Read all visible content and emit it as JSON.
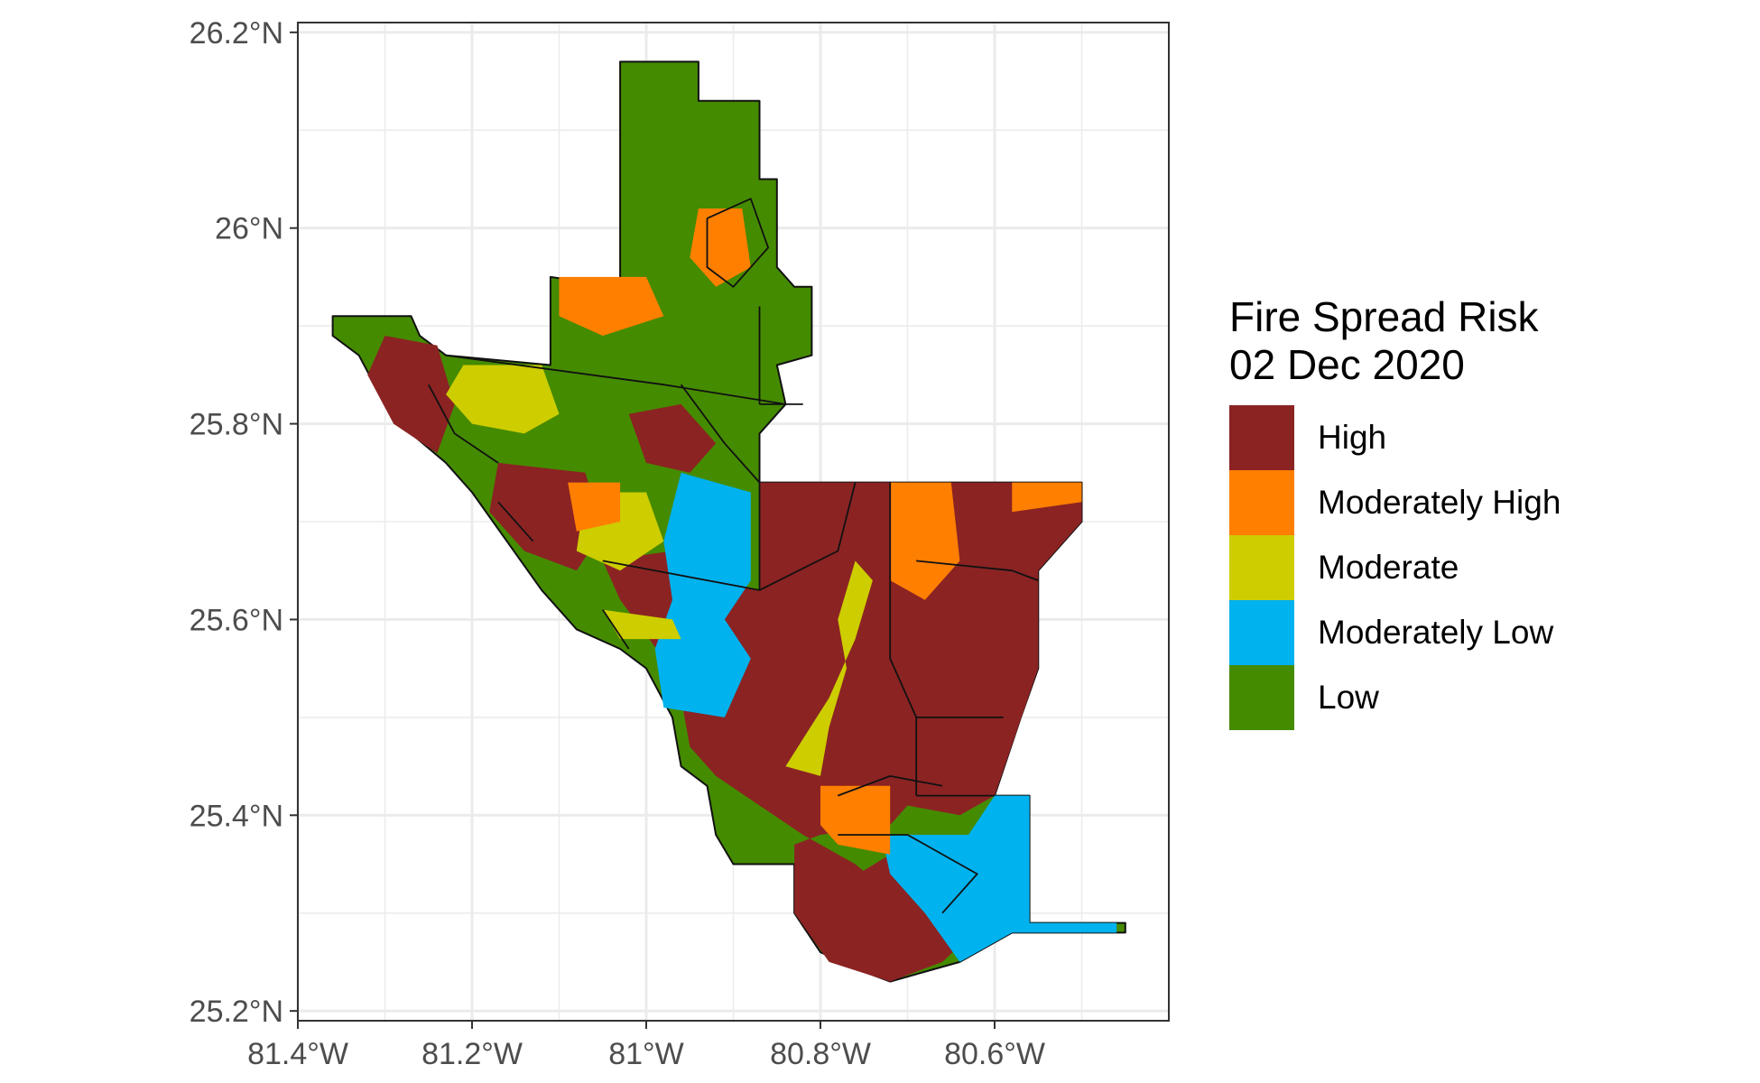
{
  "chart_data": {
    "type": "map",
    "title": "",
    "xlabel": "",
    "ylabel": "",
    "xlim": [
      -81.4,
      -80.4
    ],
    "ylim": [
      25.19,
      26.21
    ],
    "grid": true,
    "x_ticks": [
      {
        "value": -81.4,
        "label": "81.4°W"
      },
      {
        "value": -81.2,
        "label": "81.2°W"
      },
      {
        "value": -81.0,
        "label": "81°W"
      },
      {
        "value": -80.8,
        "label": "80.8°W"
      },
      {
        "value": -80.6,
        "label": "80.6°W"
      }
    ],
    "y_ticks": [
      {
        "value": 25.2,
        "label": "25.2°N"
      },
      {
        "value": 25.4,
        "label": "25.4°N"
      },
      {
        "value": 25.6,
        "label": "25.6°N"
      },
      {
        "value": 25.8,
        "label": "25.8°N"
      },
      {
        "value": 26.0,
        "label": "26°N"
      },
      {
        "value": 26.2,
        "label": "26.2°N"
      }
    ],
    "legend": {
      "title_line1": "Fire Spread Risk",
      "title_line2": "02 Dec 2020",
      "placement": "right",
      "classes": [
        {
          "label": "High",
          "color": "#8B2323"
        },
        {
          "label": "Moderately High",
          "color": "#FF7F00"
        },
        {
          "label": "Moderate",
          "color": "#CDCD00"
        },
        {
          "label": "Moderately Low",
          "color": "#00B2EE"
        },
        {
          "label": "Low",
          "color": "#458B00"
        }
      ]
    },
    "regions": [
      {
        "name": "outer-boundary",
        "class": "Low",
        "coords": [
          [
            -81.36,
            25.91
          ],
          [
            -81.27,
            25.91
          ],
          [
            -81.26,
            25.89
          ],
          [
            -81.23,
            25.87
          ],
          [
            -81.11,
            25.86
          ],
          [
            -81.11,
            25.95
          ],
          [
            -81.03,
            25.94
          ],
          [
            -81.03,
            26.17
          ],
          [
            -80.94,
            26.17
          ],
          [
            -80.94,
            26.13
          ],
          [
            -80.87,
            26.13
          ],
          [
            -80.87,
            26.05
          ],
          [
            -80.85,
            26.05
          ],
          [
            -80.85,
            25.96
          ],
          [
            -80.83,
            25.94
          ],
          [
            -80.81,
            25.94
          ],
          [
            -80.81,
            25.87
          ],
          [
            -80.85,
            25.86
          ],
          [
            -80.84,
            25.82
          ],
          [
            -80.87,
            25.79
          ],
          [
            -80.87,
            25.74
          ],
          [
            -80.5,
            25.74
          ],
          [
            -80.5,
            25.7
          ],
          [
            -80.55,
            25.65
          ],
          [
            -80.55,
            25.55
          ],
          [
            -80.57,
            25.5
          ],
          [
            -80.6,
            25.42
          ],
          [
            -80.56,
            25.42
          ],
          [
            -80.56,
            25.29
          ],
          [
            -80.45,
            25.29
          ],
          [
            -80.45,
            25.28
          ],
          [
            -80.58,
            25.28
          ],
          [
            -80.64,
            25.25
          ],
          [
            -80.72,
            25.23
          ],
          [
            -80.75,
            25.24
          ],
          [
            -80.8,
            25.26
          ],
          [
            -80.83,
            25.3
          ],
          [
            -80.83,
            25.35
          ],
          [
            -80.9,
            25.35
          ],
          [
            -80.92,
            25.38
          ],
          [
            -80.93,
            25.43
          ],
          [
            -80.96,
            25.45
          ],
          [
            -80.97,
            25.5
          ],
          [
            -81.0,
            25.55
          ],
          [
            -81.03,
            25.57
          ],
          [
            -81.08,
            25.59
          ],
          [
            -81.12,
            25.63
          ],
          [
            -81.16,
            25.68
          ],
          [
            -81.2,
            25.73
          ],
          [
            -81.23,
            25.76
          ],
          [
            -81.27,
            25.79
          ],
          [
            -81.3,
            25.82
          ],
          [
            -81.33,
            25.87
          ],
          [
            -81.36,
            25.89
          ]
        ]
      },
      {
        "name": "high-central",
        "class": "High",
        "coords": [
          [
            -80.87,
            25.74
          ],
          [
            -80.72,
            25.74
          ],
          [
            -80.72,
            25.56
          ],
          [
            -80.69,
            25.5
          ],
          [
            -80.69,
            25.42
          ],
          [
            -80.72,
            25.39
          ],
          [
            -80.8,
            25.38
          ],
          [
            -80.83,
            25.37
          ],
          [
            -80.83,
            25.3
          ],
          [
            -80.78,
            25.26
          ],
          [
            -80.72,
            25.23
          ],
          [
            -80.68,
            25.27
          ],
          [
            -80.72,
            25.32
          ],
          [
            -80.76,
            25.35
          ],
          [
            -80.82,
            25.38
          ],
          [
            -80.87,
            25.41
          ],
          [
            -80.92,
            25.44
          ],
          [
            -80.95,
            25.47
          ],
          [
            -80.96,
            25.52
          ],
          [
            -80.98,
            25.56
          ],
          [
            -81.03,
            25.62
          ],
          [
            -81.05,
            25.66
          ],
          [
            -80.97,
            25.67
          ],
          [
            -80.93,
            25.64
          ],
          [
            -80.87,
            25.63
          ]
        ]
      },
      {
        "name": "high-east",
        "class": "High",
        "coords": [
          [
            -80.73,
            25.74
          ],
          [
            -80.5,
            25.74
          ],
          [
            -80.5,
            25.7
          ],
          [
            -80.55,
            25.65
          ],
          [
            -80.55,
            25.55
          ],
          [
            -80.6,
            25.42
          ],
          [
            -80.64,
            25.4
          ],
          [
            -80.7,
            25.41
          ],
          [
            -80.72,
            25.48
          ],
          [
            -80.74,
            25.56
          ],
          [
            -80.74,
            25.66
          ]
        ]
      },
      {
        "name": "high-southwest-core",
        "class": "High",
        "coords": [
          [
            -80.97,
            25.56
          ],
          [
            -80.87,
            25.6
          ],
          [
            -80.8,
            25.58
          ],
          [
            -80.78,
            25.5
          ],
          [
            -80.8,
            25.44
          ],
          [
            -80.86,
            25.42
          ],
          [
            -80.92,
            25.45
          ],
          [
            -80.95,
            25.5
          ]
        ]
      },
      {
        "name": "high-south-bay",
        "class": "High",
        "coords": [
          [
            -80.83,
            25.3
          ],
          [
            -80.72,
            25.36
          ],
          [
            -80.64,
            25.36
          ],
          [
            -80.6,
            25.3
          ],
          [
            -80.66,
            25.25
          ],
          [
            -80.72,
            25.23
          ],
          [
            -80.79,
            25.25
          ]
        ]
      },
      {
        "name": "high-northwest-patch-a",
        "class": "High",
        "coords": [
          [
            -81.3,
            25.89
          ],
          [
            -81.24,
            25.88
          ],
          [
            -81.22,
            25.82
          ],
          [
            -81.24,
            25.77
          ],
          [
            -81.29,
            25.8
          ],
          [
            -81.32,
            25.85
          ]
        ]
      },
      {
        "name": "high-northwest-patch-b",
        "class": "High",
        "coords": [
          [
            -81.17,
            25.76
          ],
          [
            -81.07,
            25.75
          ],
          [
            -81.05,
            25.69
          ],
          [
            -81.08,
            25.65
          ],
          [
            -81.14,
            25.67
          ],
          [
            -81.18,
            25.71
          ]
        ]
      },
      {
        "name": "high-north-patch",
        "class": "High",
        "coords": [
          [
            -81.02,
            25.81
          ],
          [
            -80.96,
            25.82
          ],
          [
            -80.92,
            25.78
          ],
          [
            -80.95,
            25.75
          ],
          [
            -81.0,
            25.76
          ]
        ]
      },
      {
        "name": "moderately-low-west",
        "class": "Moderately Low",
        "coords": [
          [
            -80.96,
            25.75
          ],
          [
            -80.88,
            25.73
          ],
          [
            -80.88,
            25.64
          ],
          [
            -80.91,
            25.6
          ],
          [
            -80.88,
            25.56
          ],
          [
            -80.91,
            25.5
          ],
          [
            -80.98,
            25.51
          ],
          [
            -80.99,
            25.57
          ],
          [
            -80.97,
            25.62
          ],
          [
            -80.98,
            25.68
          ]
        ]
      },
      {
        "name": "moderately-low-south",
        "class": "Moderately Low",
        "coords": [
          [
            -80.73,
            25.38
          ],
          [
            -80.63,
            25.38
          ],
          [
            -80.6,
            25.42
          ],
          [
            -80.56,
            25.42
          ],
          [
            -80.56,
            25.29
          ],
          [
            -80.46,
            25.29
          ],
          [
            -80.46,
            25.28
          ],
          [
            -80.58,
            25.28
          ],
          [
            -80.64,
            25.25
          ],
          [
            -80.68,
            25.3
          ],
          [
            -80.72,
            25.34
          ]
        ]
      },
      {
        "name": "moderate-strip",
        "class": "Moderate",
        "coords": [
          [
            -80.76,
            25.66
          ],
          [
            -80.74,
            25.64
          ],
          [
            -80.76,
            25.58
          ],
          [
            -80.79,
            25.52
          ],
          [
            -80.84,
            25.45
          ],
          [
            -80.8,
            25.44
          ],
          [
            -80.79,
            25.49
          ],
          [
            -80.77,
            25.55
          ],
          [
            -80.78,
            25.6
          ]
        ]
      },
      {
        "name": "moderate-northwest",
        "class": "Moderate",
        "coords": [
          [
            -81.21,
            25.86
          ],
          [
            -81.12,
            25.86
          ],
          [
            -81.1,
            25.81
          ],
          [
            -81.14,
            25.79
          ],
          [
            -81.2,
            25.8
          ],
          [
            -81.23,
            25.83
          ]
        ]
      },
      {
        "name": "moderate-west-mid",
        "class": "Moderate",
        "coords": [
          [
            -81.07,
            25.73
          ],
          [
            -81.0,
            25.73
          ],
          [
            -80.98,
            25.68
          ],
          [
            -81.03,
            25.65
          ],
          [
            -81.08,
            25.67
          ]
        ]
      },
      {
        "name": "moderate-coast",
        "class": "Moderate",
        "coords": [
          [
            -81.05,
            25.61
          ],
          [
            -80.97,
            25.6
          ],
          [
            -80.96,
            25.58
          ],
          [
            -81.03,
            25.58
          ]
        ]
      },
      {
        "name": "moderately-high-east",
        "class": "Moderately High",
        "coords": [
          [
            -80.72,
            25.74
          ],
          [
            -80.65,
            25.74
          ],
          [
            -80.64,
            25.66
          ],
          [
            -80.68,
            25.62
          ],
          [
            -80.72,
            25.64
          ]
        ]
      },
      {
        "name": "moderately-high-northeast",
        "class": "Moderately High",
        "coords": [
          [
            -80.58,
            25.74
          ],
          [
            -80.5,
            25.74
          ],
          [
            -80.5,
            25.72
          ],
          [
            -80.58,
            25.71
          ]
        ]
      },
      {
        "name": "moderately-high-south",
        "class": "Moderately High",
        "coords": [
          [
            -80.8,
            25.43
          ],
          [
            -80.72,
            25.43
          ],
          [
            -80.72,
            25.36
          ],
          [
            -80.78,
            25.37
          ],
          [
            -80.8,
            25.39
          ]
        ]
      },
      {
        "name": "moderately-high-west",
        "class": "Moderately High",
        "coords": [
          [
            -81.09,
            25.74
          ],
          [
            -81.03,
            25.74
          ],
          [
            -81.03,
            25.7
          ],
          [
            -81.08,
            25.69
          ]
        ]
      },
      {
        "name": "moderately-high-north",
        "class": "Moderately High",
        "coords": [
          [
            -80.94,
            26.02
          ],
          [
            -80.89,
            26.02
          ],
          [
            -80.88,
            25.96
          ],
          [
            -80.92,
            25.94
          ],
          [
            -80.95,
            25.97
          ]
        ]
      },
      {
        "name": "moderately-high-north-b",
        "class": "Moderately High",
        "coords": [
          [
            -81.1,
            25.95
          ],
          [
            -81.0,
            25.95
          ],
          [
            -80.98,
            25.91
          ],
          [
            -81.05,
            25.89
          ],
          [
            -81.1,
            25.91
          ]
        ]
      }
    ],
    "boundaries": [
      [
        [
          -81.23,
          25.87
        ],
        [
          -80.98,
          25.84
        ],
        [
          -80.84,
          25.82
        ]
      ],
      [
        [
          -80.96,
          25.84
        ],
        [
          -80.91,
          25.78
        ],
        [
          -80.87,
          25.74
        ]
      ],
      [
        [
          -80.87,
          25.74
        ],
        [
          -80.87,
          25.63
        ],
        [
          -80.78,
          25.67
        ],
        [
          -80.76,
          25.74
        ]
      ],
      [
        [
          -80.72,
          25.74
        ],
        [
          -80.72,
          25.56
        ],
        [
          -80.69,
          25.5
        ],
        [
          -80.69,
          25.42
        ]
      ],
      [
        [
          -80.69,
          25.66
        ],
        [
          -80.58,
          25.65
        ],
        [
          -80.55,
          25.64
        ]
      ],
      [
        [
          -80.69,
          25.5
        ],
        [
          -80.59,
          25.5
        ]
      ],
      [
        [
          -80.69,
          25.42
        ],
        [
          -80.6,
          25.42
        ]
      ],
      [
        [
          -81.05,
          25.66
        ],
        [
          -80.87,
          25.63
        ]
      ],
      [
        [
          -80.87,
          25.92
        ],
        [
          -80.87,
          25.82
        ]
      ],
      [
        [
          -80.87,
          25.82
        ],
        [
          -80.82,
          25.82
        ]
      ],
      [
        [
          -80.93,
          26.01
        ],
        [
          -80.88,
          26.03
        ],
        [
          -80.86,
          25.98
        ],
        [
          -80.9,
          25.94
        ],
        [
          -80.93,
          25.96
        ],
        [
          -80.93,
          26.01
        ]
      ],
      [
        [
          -80.78,
          25.38
        ],
        [
          -80.7,
          25.38
        ],
        [
          -80.62,
          25.34
        ],
        [
          -80.66,
          25.3
        ]
      ],
      [
        [
          -80.78,
          25.42
        ],
        [
          -80.72,
          25.44
        ],
        [
          -80.66,
          25.43
        ]
      ],
      [
        [
          -81.25,
          25.84
        ],
        [
          -81.22,
          25.79
        ]
      ],
      [
        [
          -81.22,
          25.79
        ],
        [
          -81.17,
          25.76
        ]
      ],
      [
        [
          -81.17,
          25.72
        ],
        [
          -81.13,
          25.68
        ]
      ],
      [
        [
          -81.05,
          25.61
        ],
        [
          -81.02,
          25.57
        ]
      ]
    ]
  }
}
